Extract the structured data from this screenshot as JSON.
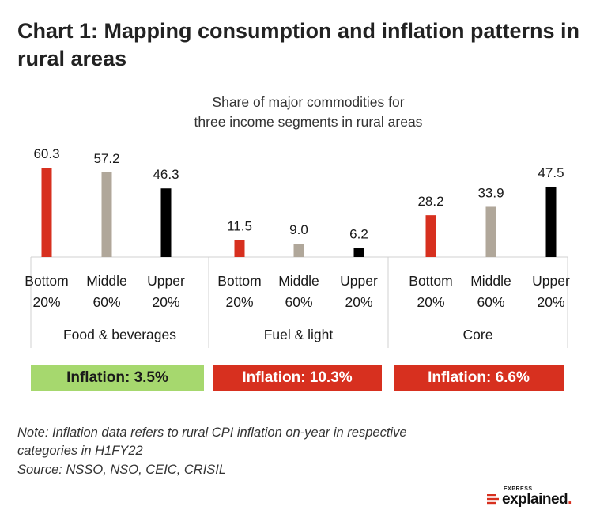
{
  "title": "Chart 1: Mapping consumption and inflation patterns in rural areas",
  "subtitle_line1": "Share of major commodities for",
  "subtitle_line2": "three income segments in rural areas",
  "colors": {
    "bottom": "#d7301f",
    "middle": "#b0a79a",
    "upper": "#000000",
    "inflation_green": "#a6d86e",
    "inflation_red": "#d7301f"
  },
  "chart_data": {
    "type": "bar",
    "title": "Share of major commodities for three income segments in rural areas",
    "groups": [
      {
        "name": "Food & beverages",
        "categories": [
          [
            "Bottom",
            "20%"
          ],
          [
            "Middle",
            "60%"
          ],
          [
            "Upper",
            "20%"
          ]
        ],
        "values": [
          60.3,
          57.2,
          46.3
        ],
        "labels": [
          "60.3",
          "57.2",
          "46.3"
        ]
      },
      {
        "name": "Fuel & light",
        "categories": [
          [
            "Bottom",
            "20%"
          ],
          [
            "Middle",
            "60%"
          ],
          [
            "Upper",
            "20%"
          ]
        ],
        "values": [
          11.5,
          9.0,
          6.2
        ],
        "labels": [
          "11.5",
          "9.0",
          "6.2"
        ]
      },
      {
        "name": "Core",
        "categories": [
          [
            "Bottom",
            "20%"
          ],
          [
            "Middle",
            "60%"
          ],
          [
            "Upper",
            "20%"
          ]
        ],
        "values": [
          28.2,
          33.9,
          47.5
        ],
        "labels": [
          "28.2",
          "33.9",
          "47.5"
        ]
      }
    ],
    "ylim": [
      0,
      60.3
    ],
    "grid": false,
    "legend": "none"
  },
  "inflation": [
    {
      "label": "Inflation: 3.5%",
      "color": "#a6d86e",
      "text_color": "#1a1a1a"
    },
    {
      "label": "Inflation: 10.3%",
      "color": "#d7301f",
      "text_color": "#ffffff"
    },
    {
      "label": "Inflation: 6.6%",
      "color": "#d7301f",
      "text_color": "#ffffff"
    }
  ],
  "note_line1": "Note: Inflation data refers to rural CPI inflation on-year in respective",
  "note_line2": "categories in H1FY22",
  "source": "Source: NSSO, NSO, CEIC, CRISIL",
  "logo": {
    "small": "EXPRESS",
    "main": "explained",
    "dot": "."
  }
}
